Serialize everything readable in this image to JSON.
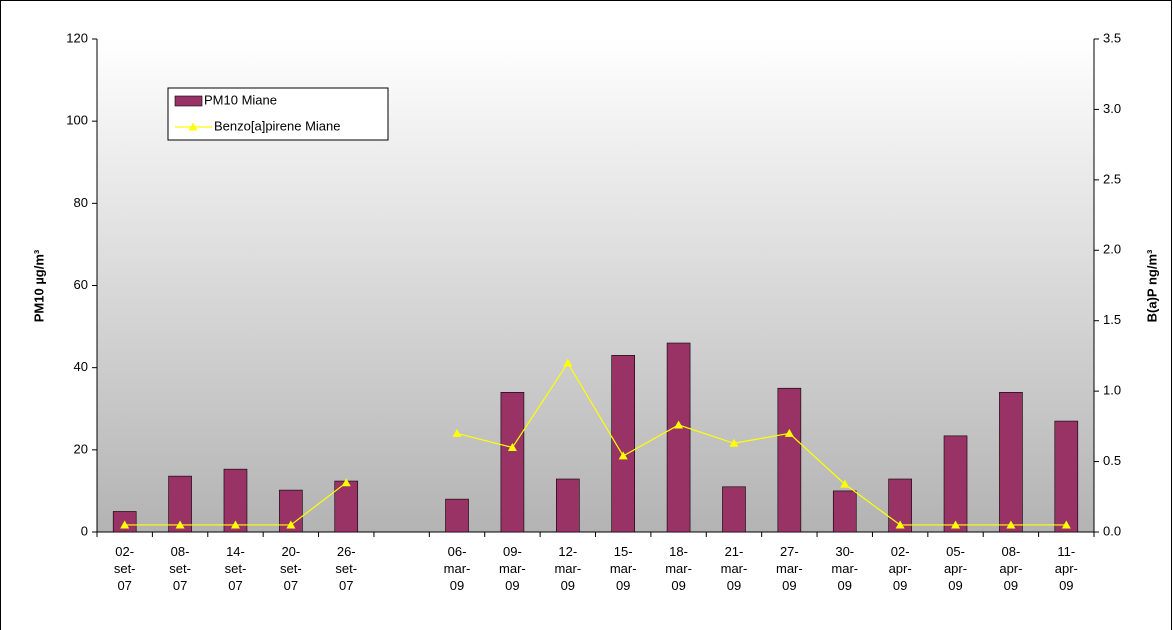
{
  "chart_data": {
    "type": "bar-line",
    "categories": [
      "02-set-07",
      "08-set-07",
      "14-set-07",
      "20-set-07",
      "26-set-07",
      null,
      "06-mar-09",
      "09-mar-09",
      "12-mar-09",
      "15-mar-09",
      "18-mar-09",
      "21-mar-09",
      "27-mar-09",
      "30-mar-09",
      "02-apr-09",
      "05-apr-09",
      "08-apr-09",
      "11-apr-09"
    ],
    "series": [
      {
        "name": "PM10 Miane",
        "type": "bar",
        "color": "#993366",
        "values": [
          5,
          13.6,
          15.3,
          10.2,
          12.4,
          null,
          8,
          34,
          12.9,
          43,
          46,
          11,
          35,
          10,
          12.9,
          23.4,
          34,
          27
        ]
      },
      {
        "name": "Benzo[a]pirene Miane",
        "type": "line",
        "axis": "y2",
        "color": "#ffff00",
        "values": [
          0.05,
          0.05,
          0.05,
          0.05,
          0.35,
          null,
          0.7,
          0.6,
          1.2,
          0.54,
          0.76,
          0.63,
          0.7,
          0.34,
          0.05,
          0.05,
          0.05,
          0.05
        ]
      }
    ],
    "ylabel": "PM10 µg/m³",
    "y2label": "B(a)P ng/m³",
    "ylim": [
      0,
      120
    ],
    "yticks": [
      0,
      20,
      40,
      60,
      80,
      100,
      120
    ],
    "y2lim": [
      0,
      3.5
    ],
    "y2ticks": [
      {
        "value": 0,
        "label": "0.0"
      },
      0.5,
      {
        "value": 1,
        "label": "1.0"
      },
      1.5,
      {
        "value": 2,
        "label": "2.0"
      },
      2.5,
      {
        "value": 3,
        "label": "3.0"
      },
      3.5
    ],
    "legend": "upper left",
    "grid": false
  }
}
